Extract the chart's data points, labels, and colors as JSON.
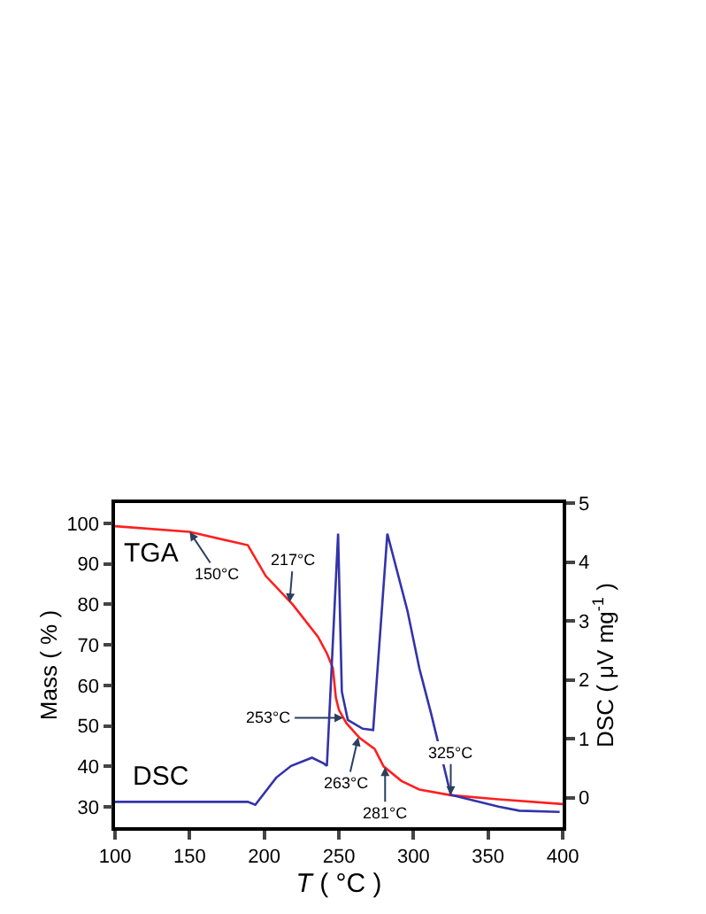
{
  "chart_data": {
    "type": "line",
    "xlabel": "T ( °C )",
    "ylabel": "Mass ( % )",
    "y2label": "DSC ( μV mg$^{-1}$ )",
    "xlim": [
      100,
      400
    ],
    "xticks": [
      100,
      150,
      200,
      250,
      300,
      350,
      400
    ],
    "ylim": [
      25,
      105
    ],
    "yticks": [
      30,
      40,
      50,
      60,
      70,
      80,
      90,
      100
    ],
    "y2lim": [
      -0.5,
      5
    ],
    "y2ticks": [
      0,
      1,
      2,
      3,
      4,
      5
    ],
    "legend": false,
    "marker": "none",
    "line_style": "solid",
    "series": [
      {
        "color": "#ff1f1f",
        "x": [
          100,
          150,
          189,
          201,
          219,
          236,
          242,
          246,
          248,
          250,
          255,
          264,
          274,
          280,
          292,
          304,
          325,
          357,
          400
        ],
        "values": [
          99.3,
          97.9,
          94.6,
          87,
          80,
          72,
          67.9,
          64.3,
          57,
          54,
          50.7,
          47,
          44.3,
          40,
          36.4,
          34.3,
          32.9,
          31.9,
          30.7
        ]
      },
      {
        "color": "#3333aa",
        "axis": "y2",
        "x": [
          100,
          189,
          194,
          208,
          218,
          232,
          240,
          242,
          249.5,
          252,
          256,
          266,
          273,
          282.5,
          296,
          304,
          312,
          325,
          357,
          371,
          398
        ],
        "values": [
          -0.07,
          -0.07,
          -0.12,
          0.34,
          0.54,
          0.68,
          0.58,
          0.54,
          4.48,
          1.8,
          1.32,
          1.17,
          1.15,
          4.48,
          3.17,
          2.19,
          1.41,
          0.05,
          -0.15,
          -0.22,
          -0.24
        ]
      }
    ],
    "annotations": [
      "TGA",
      "DSC",
      {
        "text": "150°C",
        "x": 150,
        "y": 97.9
      },
      {
        "text": "217°C",
        "x": 217,
        "y": 80.5
      },
      {
        "text": "253°C",
        "x": 253,
        "y": 52
      },
      {
        "text": "263°C",
        "x": 263,
        "y": 47.2
      },
      {
        "text": "281°C",
        "x": 281,
        "y": 39.8
      },
      {
        "text": "325°C",
        "x": 325,
        "y": 32.9
      }
    ]
  }
}
